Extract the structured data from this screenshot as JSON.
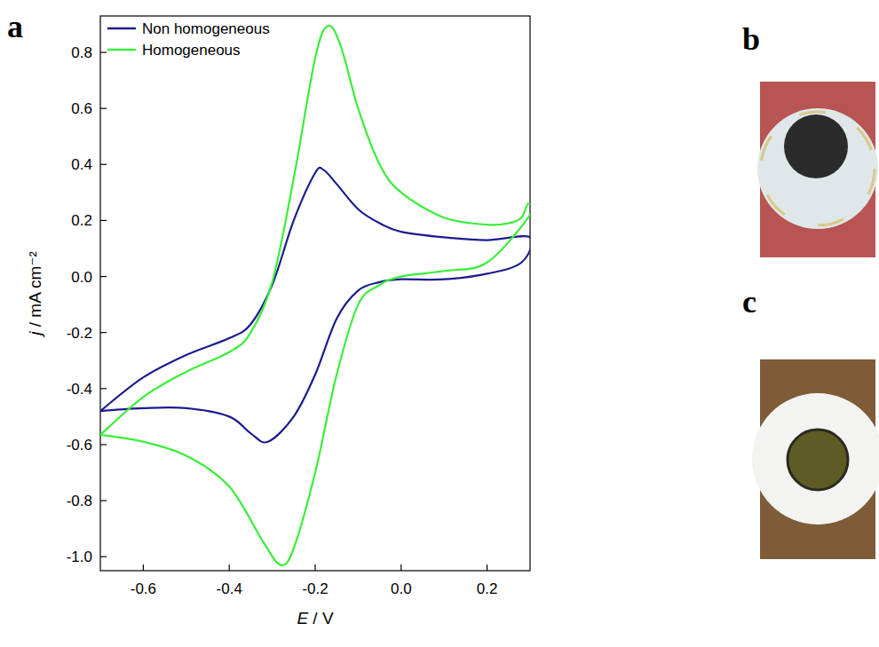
{
  "chart_data": {
    "type": "line",
    "xlabel": "E / V",
    "ylabel": "j / mA cm⁻²",
    "xlim": [
      -0.7,
      0.3
    ],
    "ylim": [
      -1.05,
      0.93
    ],
    "xticks": [
      -0.6,
      -0.4,
      -0.2,
      {
        "value": 0,
        "label": "0.0"
      },
      0.2
    ],
    "yticks": [
      {
        "value": -1,
        "label": "-1.0"
      },
      -0.8,
      -0.6,
      -0.4,
      -0.2,
      {
        "value": 0,
        "label": "0.0"
      },
      0.2,
      0.4,
      0.6,
      0.8
    ],
    "legend": "upper left",
    "grid": false,
    "series": [
      {
        "name": "Non homogeneous",
        "color": "#1c1c8e",
        "x": [
          -0.7,
          -0.6,
          -0.5,
          -0.4,
          -0.35,
          -0.3,
          -0.25,
          -0.2,
          -0.18,
          -0.15,
          -0.1,
          -0.05,
          0.0,
          0.1,
          0.2,
          0.3,
          0.28,
          0.2,
          0.1,
          0.0,
          -0.05,
          -0.1,
          -0.15,
          -0.2,
          -0.25,
          -0.31,
          -0.35,
          -0.4,
          -0.5,
          -0.6,
          -0.7
        ],
        "values": [
          -0.48,
          -0.36,
          -0.28,
          -0.22,
          -0.17,
          -0.03,
          0.2,
          0.37,
          0.38,
          0.33,
          0.24,
          0.19,
          0.16,
          0.14,
          0.13,
          0.14,
          0.05,
          0.01,
          -0.01,
          -0.01,
          -0.02,
          -0.05,
          -0.15,
          -0.35,
          -0.5,
          -0.59,
          -0.56,
          -0.5,
          -0.47,
          -0.47,
          -0.48
        ]
      },
      {
        "name": "Homogeneous",
        "color": "#3aee3a",
        "x": [
          -0.7,
          -0.6,
          -0.5,
          -0.4,
          -0.35,
          -0.3,
          -0.25,
          -0.2,
          -0.17,
          -0.14,
          -0.1,
          -0.05,
          0.0,
          0.1,
          0.2,
          0.25,
          0.28,
          0.295,
          0.3,
          0.2,
          0.1,
          0.0,
          -0.05,
          -0.1,
          -0.15,
          -0.2,
          -0.25,
          -0.28,
          -0.32,
          -0.4,
          -0.5,
          -0.6,
          -0.7
        ],
        "values": [
          -0.565,
          -0.43,
          -0.34,
          -0.27,
          -0.2,
          -0.02,
          0.35,
          0.78,
          0.895,
          0.82,
          0.6,
          0.4,
          0.3,
          0.21,
          0.185,
          0.19,
          0.21,
          0.26,
          0.22,
          0.05,
          0.02,
          0.0,
          -0.03,
          -0.1,
          -0.35,
          -0.7,
          -0.97,
          -1.03,
          -0.95,
          -0.75,
          -0.64,
          -0.59,
          -0.565
        ]
      }
    ]
  },
  "panel_labels": [
    "a",
    "b",
    "c"
  ]
}
